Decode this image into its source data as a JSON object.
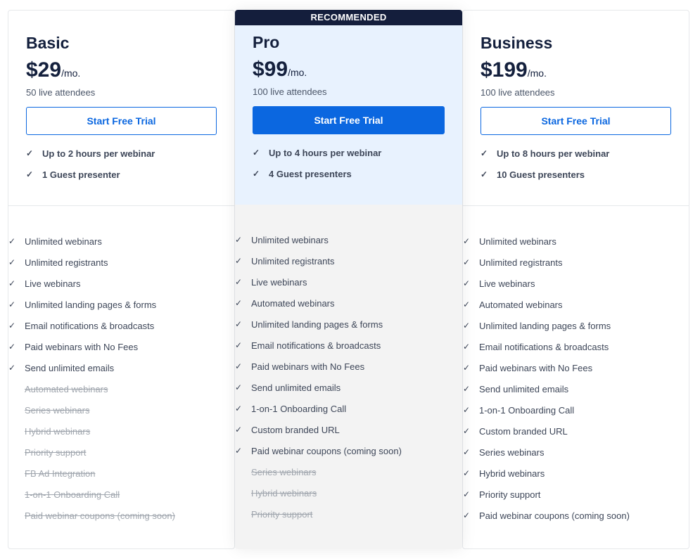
{
  "plans": [
    {
      "id": "basic",
      "name": "Basic",
      "price": "$29",
      "period": "/mo.",
      "attendees": "50 live attendees",
      "cta": "Start Free Trial",
      "highlights": [
        "Up to 2 hours per webinar",
        "1 Guest presenter"
      ],
      "features": [
        {
          "label": "Unlimited webinars",
          "included": true
        },
        {
          "label": "Unlimited registrants",
          "included": true
        },
        {
          "label": "Live webinars",
          "included": true
        },
        {
          "label": "Unlimited landing pages & forms",
          "included": true
        },
        {
          "label": "Email notifications & broadcasts",
          "included": true
        },
        {
          "label": "Paid webinars with No Fees",
          "included": true
        },
        {
          "label": "Send unlimited emails",
          "included": true
        },
        {
          "label": "Automated webinars",
          "included": false
        },
        {
          "label": "Series webinars",
          "included": false
        },
        {
          "label": "Hybrid webinars",
          "included": false
        },
        {
          "label": "Priority support",
          "included": false
        },
        {
          "label": "FB Ad Integration",
          "included": false
        },
        {
          "label": "1-on-1 Onboarding Call",
          "included": false
        },
        {
          "label": "Paid webinar coupons (coming soon)",
          "included": false
        }
      ]
    },
    {
      "id": "pro",
      "name": "Pro",
      "badge": "RECOMMENDED",
      "price": "$99",
      "period": "/mo.",
      "attendees": "100 live attendees",
      "cta": "Start Free Trial",
      "highlights": [
        "Up to 4 hours per webinar",
        "4 Guest presenters"
      ],
      "features": [
        {
          "label": "Unlimited webinars",
          "included": true
        },
        {
          "label": "Unlimited registrants",
          "included": true
        },
        {
          "label": "Live webinars",
          "included": true
        },
        {
          "label": "Automated webinars",
          "included": true
        },
        {
          "label": "Unlimited landing pages & forms",
          "included": true
        },
        {
          "label": "Email notifications & broadcasts",
          "included": true
        },
        {
          "label": "Paid webinars with No Fees",
          "included": true
        },
        {
          "label": "Send unlimited emails",
          "included": true
        },
        {
          "label": "1-on-1 Onboarding Call",
          "included": true
        },
        {
          "label": "Custom branded URL",
          "included": true
        },
        {
          "label": "Paid webinar coupons (coming soon)",
          "included": true
        },
        {
          "label": "Series webinars",
          "included": false
        },
        {
          "label": "Hybrid webinars",
          "included": false
        },
        {
          "label": "Priority support",
          "included": false
        }
      ]
    },
    {
      "id": "business",
      "name": "Business",
      "price": "$199",
      "period": "/mo.",
      "attendees": "100 live attendees",
      "cta": "Start Free Trial",
      "highlights": [
        "Up to 8 hours per webinar",
        "10 Guest presenters"
      ],
      "features": [
        {
          "label": "Unlimited webinars",
          "included": true
        },
        {
          "label": "Unlimited registrants",
          "included": true
        },
        {
          "label": "Live webinars",
          "included": true
        },
        {
          "label": "Automated webinars",
          "included": true
        },
        {
          "label": "Unlimited landing pages & forms",
          "included": true
        },
        {
          "label": "Email notifications & broadcasts",
          "included": true
        },
        {
          "label": "Paid webinars with No Fees",
          "included": true
        },
        {
          "label": "Send unlimited emails",
          "included": true
        },
        {
          "label": "1-on-1 Onboarding Call",
          "included": true
        },
        {
          "label": "Custom branded URL",
          "included": true
        },
        {
          "label": "Series webinars",
          "included": true
        },
        {
          "label": "Hybrid webinars",
          "included": true
        },
        {
          "label": "Priority support",
          "included": true
        },
        {
          "label": "Paid webinar coupons (coming soon)",
          "included": true
        }
      ]
    }
  ],
  "colors": {
    "accent": "#0b67e0",
    "banner": "#141e3c",
    "pro_top": "#e8f2fe",
    "pro_body": "#f3f3f3",
    "muted": "#a0a6ae"
  },
  "icons": {
    "included": "check-icon"
  }
}
